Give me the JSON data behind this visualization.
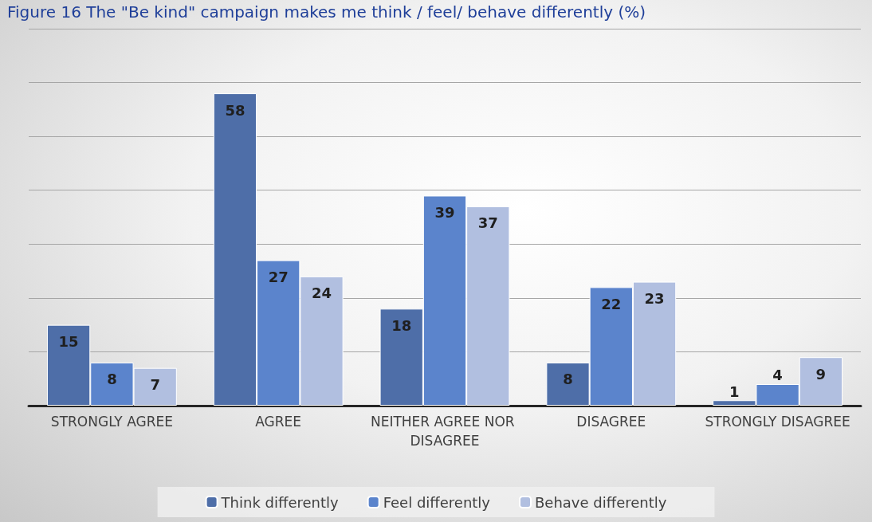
{
  "chart_data": {
    "type": "bar",
    "title": "Figure 16 The \"Be kind\" campaign makes me think / feel/ behave differently (%)",
    "categories": [
      "STRONGLY AGREE",
      "AGREE",
      "NEITHER AGREE NOR DISAGREE",
      "DISAGREE",
      "STRONGLY DISAGREE"
    ],
    "series": [
      {
        "name": "Think differently",
        "color": "#4e6ea8",
        "values": [
          15,
          58,
          18,
          8,
          1
        ]
      },
      {
        "name": "Feel differently",
        "color": "#5b84cc",
        "values": [
          8,
          27,
          39,
          22,
          4
        ]
      },
      {
        "name": "Behave differently",
        "color": "#b1bfe0",
        "values": [
          7,
          24,
          37,
          23,
          9
        ]
      }
    ],
    "ylim": [
      0,
      70
    ],
    "yticks": [
      0,
      {
        "value": 10,
        "label": null
      },
      {
        "value": 20,
        "label": null
      },
      {
        "value": 30,
        "label": null
      },
      {
        "value": 40,
        "label": null
      },
      {
        "value": 50,
        "label": null
      },
      {
        "value": 60,
        "label": null
      },
      {
        "value": 70,
        "label": null
      }
    ],
    "tick_labels": "x",
    "grid": "y",
    "legend": "bottom",
    "data_labels": true
  }
}
